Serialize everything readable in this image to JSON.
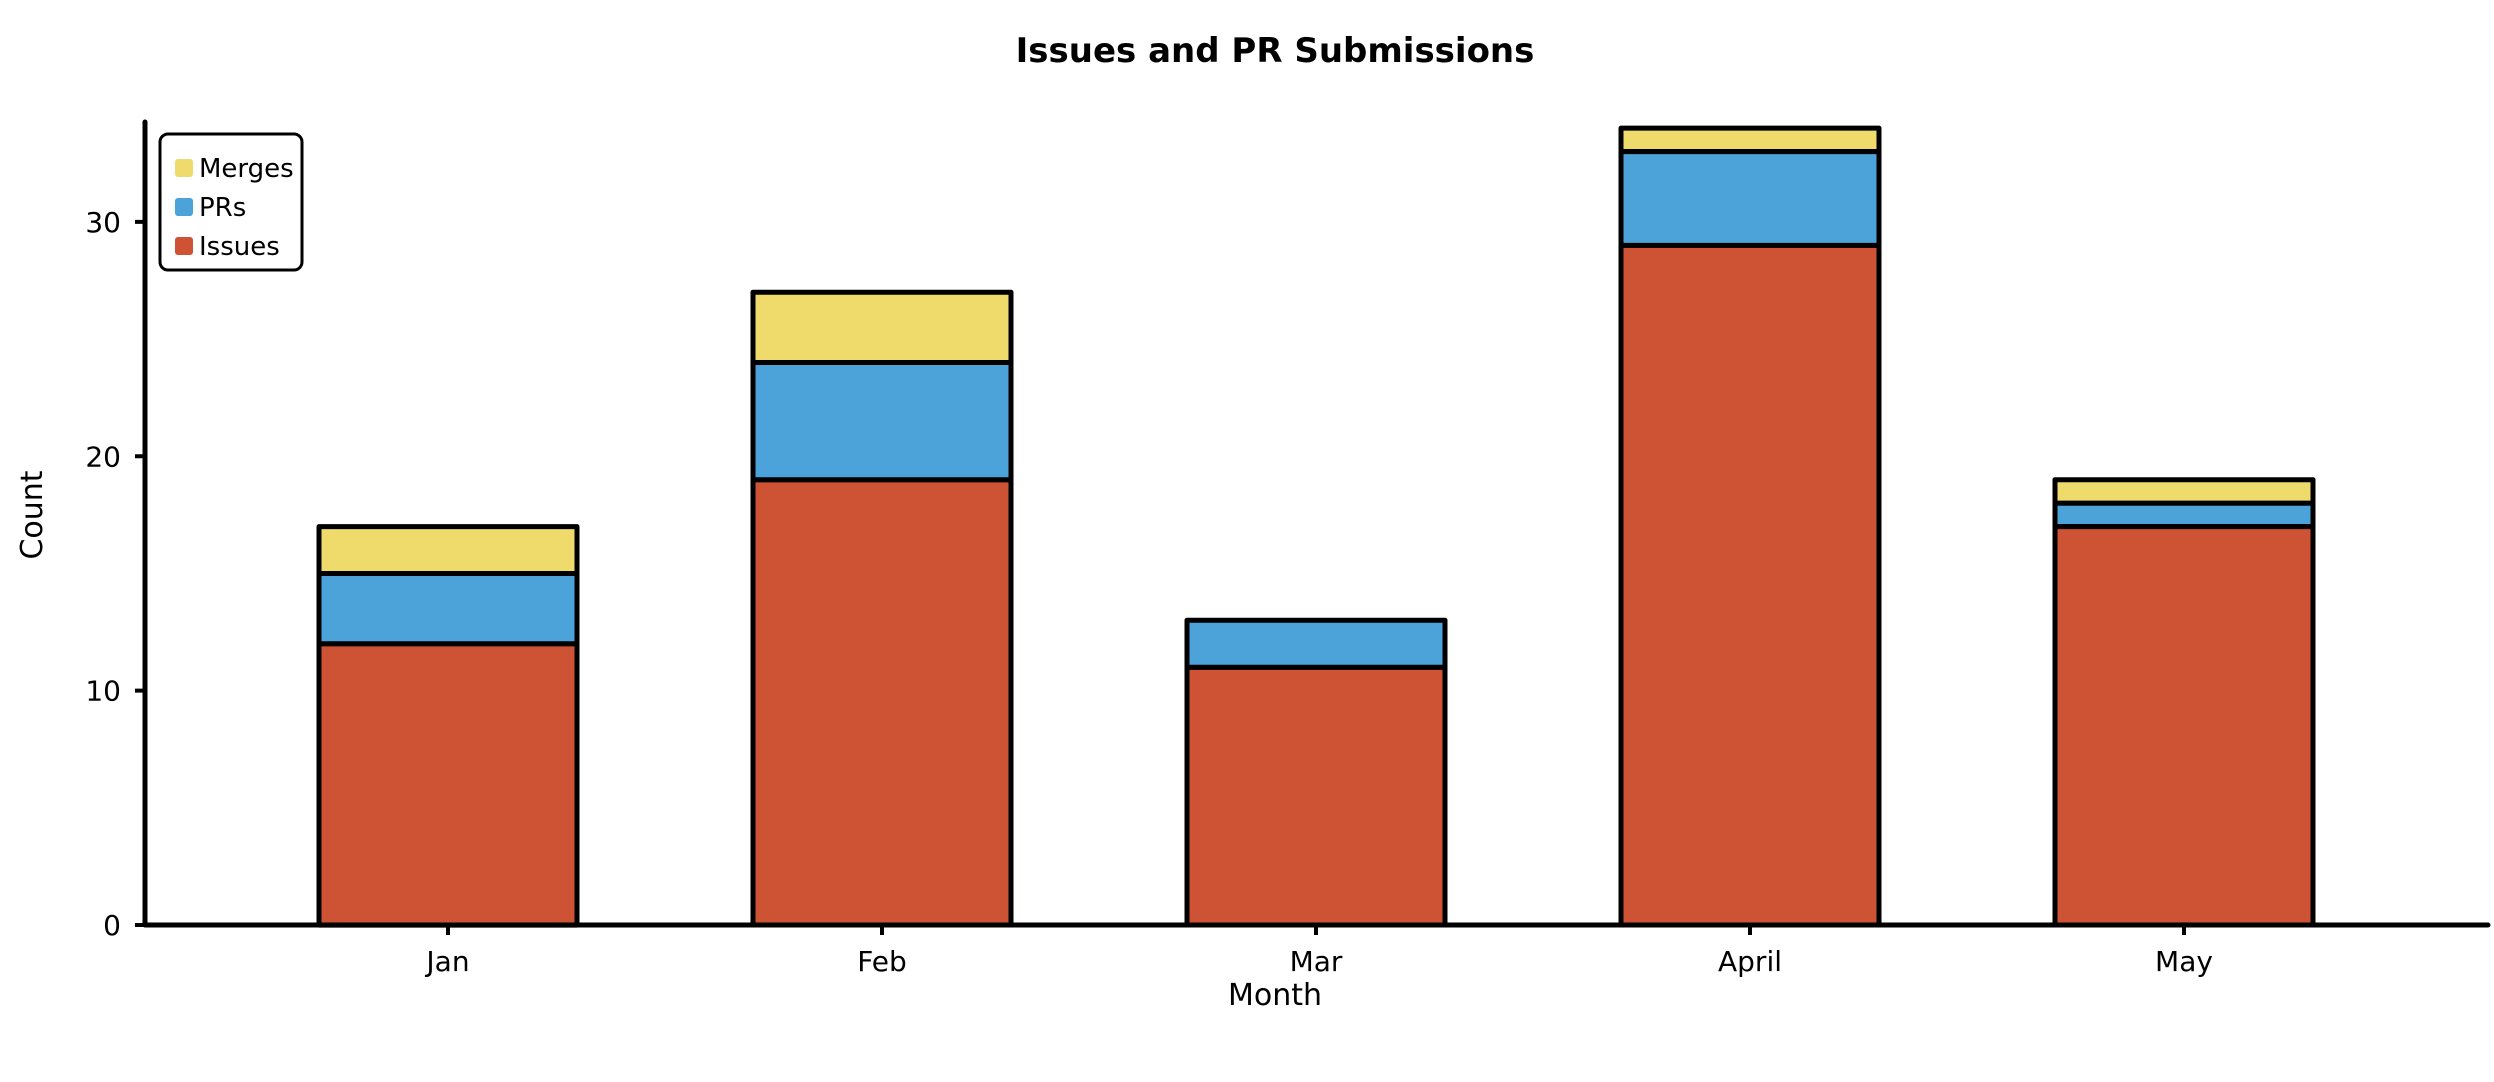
{
  "chart_data": {
    "type": "bar",
    "stacked": true,
    "title": "Issues and PR Submissions",
    "xlabel": "Month",
    "ylabel": "Count",
    "categories": [
      "Jan",
      "Feb",
      "Mar",
      "April",
      "May"
    ],
    "series": [
      {
        "name": "Issues",
        "color": "#cd5334",
        "values": [
          12,
          19,
          11,
          29,
          17
        ]
      },
      {
        "name": "PRs",
        "color": "#4ca3da",
        "values": [
          3,
          5,
          2,
          4,
          1
        ]
      },
      {
        "name": "Merges",
        "color": "#efdb6c",
        "values": [
          2,
          3,
          0,
          1,
          1
        ]
      }
    ],
    "ylim": [
      0,
      34
    ],
    "yticks": [
      0,
      10,
      20,
      30
    ],
    "legend_placement": "top-left",
    "grid": false
  }
}
